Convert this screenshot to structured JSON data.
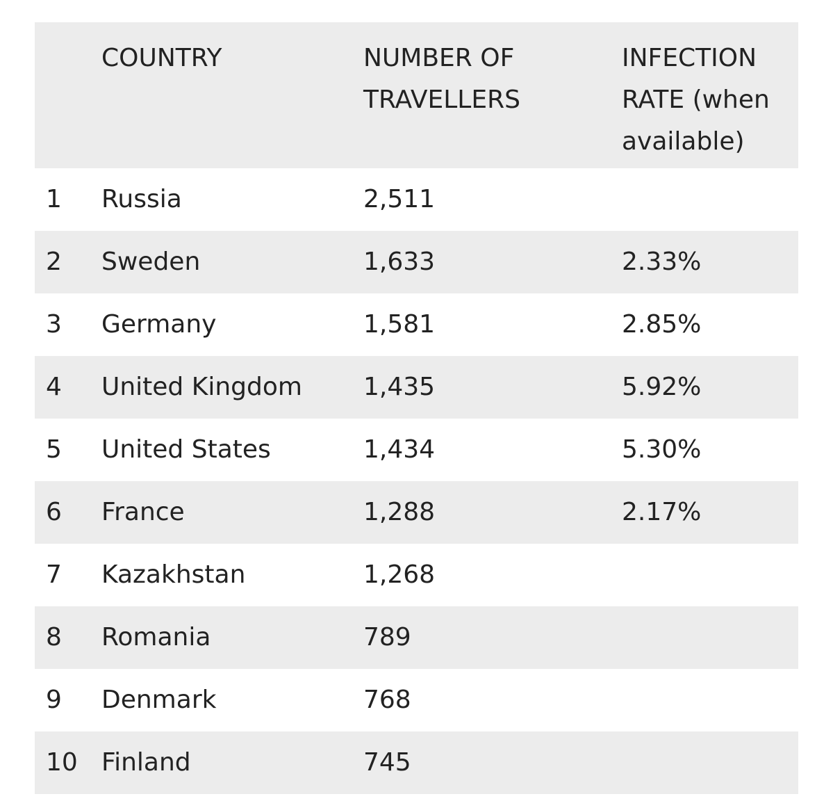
{
  "table": {
    "headers": {
      "rank": "",
      "country": "COUNTRY",
      "travellers": "NUMBER OF\nTRAVELLERS",
      "infection_rate": "INFECTION\nRATE (when\navailable)"
    },
    "rows": [
      {
        "rank": "1",
        "country": "Russia",
        "travellers": "2,511",
        "infection_rate": ""
      },
      {
        "rank": "2",
        "country": "Sweden",
        "travellers": "1,633",
        "infection_rate": "2.33%"
      },
      {
        "rank": "3",
        "country": "Germany",
        "travellers": "1,581",
        "infection_rate": "2.85%"
      },
      {
        "rank": "4",
        "country": "United Kingdom",
        "travellers": "1,435",
        "infection_rate": "5.92%"
      },
      {
        "rank": "5",
        "country": "United States",
        "travellers": "1,434",
        "infection_rate": "5.30%"
      },
      {
        "rank": "6",
        "country": "France",
        "travellers": "1,288",
        "infection_rate": "2.17%"
      },
      {
        "rank": "7",
        "country": "Kazakhstan",
        "travellers": "1,268",
        "infection_rate": ""
      },
      {
        "rank": "8",
        "country": "Romania",
        "travellers": "789",
        "infection_rate": ""
      },
      {
        "rank": "9",
        "country": "Denmark",
        "travellers": "768",
        "infection_rate": ""
      },
      {
        "rank": "10",
        "country": "Finland",
        "travellers": "745",
        "infection_rate": ""
      }
    ]
  },
  "colors": {
    "shaded_row": "#ececec",
    "text": "#222222",
    "background": "#ffffff"
  }
}
